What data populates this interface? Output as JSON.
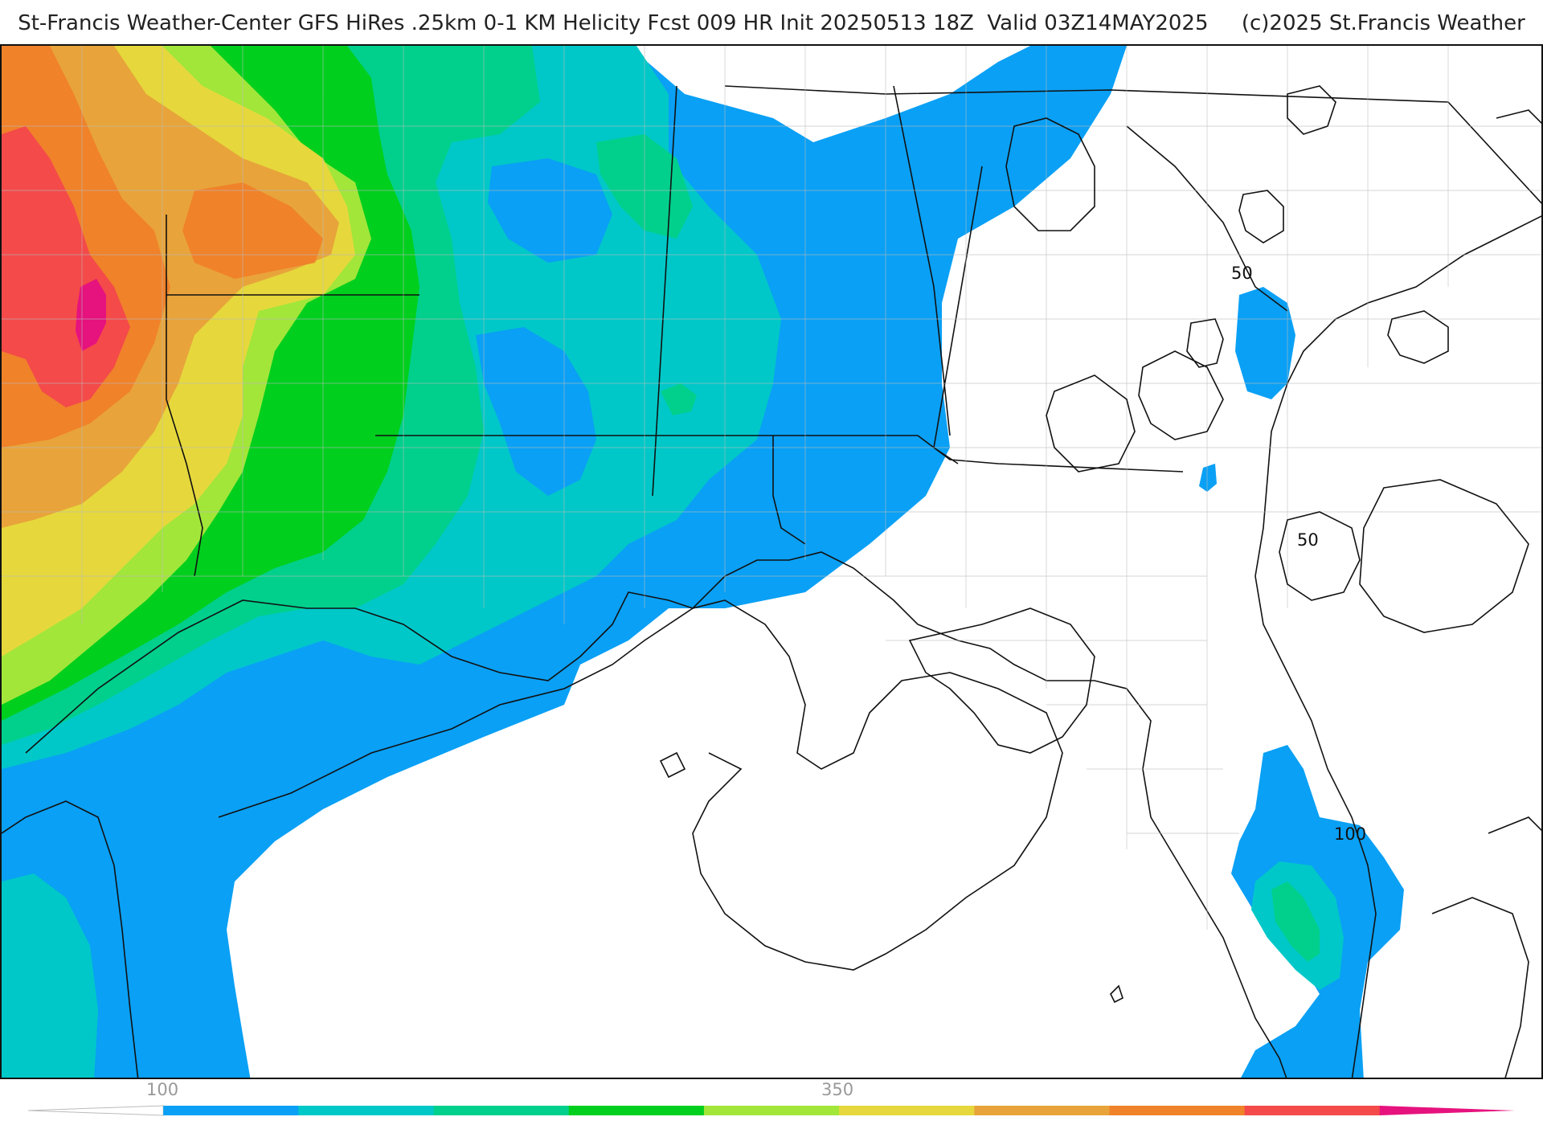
{
  "header": {
    "title": "St-Francis Weather-Center GFS HiRes .25km 0-1 KM Helicity Fcst 009 HR Init 20250513 18Z  Valid 03Z14MAY2025     (c)2025 St.Francis Weather"
  },
  "legend": {
    "colors": [
      "#ffffff",
      "#0aa0f5",
      "#00c8c8",
      "#00d08c",
      "#00cf1e",
      "#a2e63a",
      "#e6d83c",
      "#e8a43a",
      "#f0822a",
      "#f44a4a",
      "#e6127e"
    ],
    "label_low": "100",
    "label_mid": "350",
    "label_low_value": 100,
    "label_mid_value": 350
  },
  "contour_labels": [
    "50",
    "50",
    "100"
  ],
  "map_colors": {
    "blue": "#0aa0f5",
    "cyan": "#00c8c8",
    "teal": "#00d08c",
    "green": "#00cf1e",
    "lime": "#a2e63a",
    "yellow": "#e6d83c",
    "gold": "#e8a43a",
    "orange": "#f0822a",
    "red": "#f44a4a",
    "magenta": "#e6127e"
  }
}
